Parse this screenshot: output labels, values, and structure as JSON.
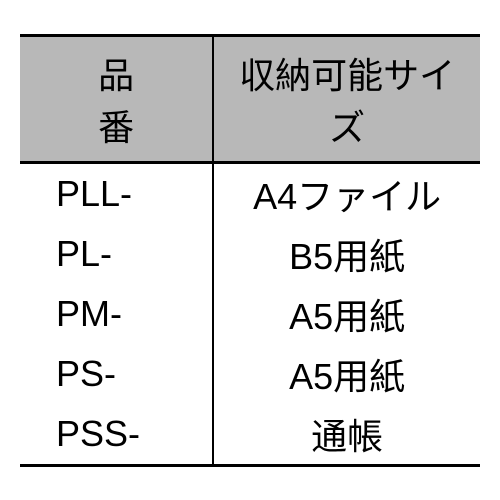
{
  "table": {
    "headers": {
      "col1": "品番",
      "col2": "収納可能サイズ"
    },
    "rows": [
      {
        "code": "PLL-",
        "size": "A4ファイル"
      },
      {
        "code": "PL-",
        "size": "B5用紙"
      },
      {
        "code": "PM-",
        "size": "A5用紙"
      },
      {
        "code": "PS-",
        "size": "A5用紙"
      },
      {
        "code": "PSS-",
        "size": "通帳"
      }
    ],
    "styling": {
      "header_bg": "#b8b8b8",
      "header_text_color": "#000000",
      "cell_text_color": "#000000",
      "border_color": "#000000",
      "border_width_outer": 3,
      "border_width_inner": 2,
      "font_size": 36,
      "background_color": "#ffffff",
      "col1_width_pct": 42,
      "col2_width_pct": 58
    }
  }
}
